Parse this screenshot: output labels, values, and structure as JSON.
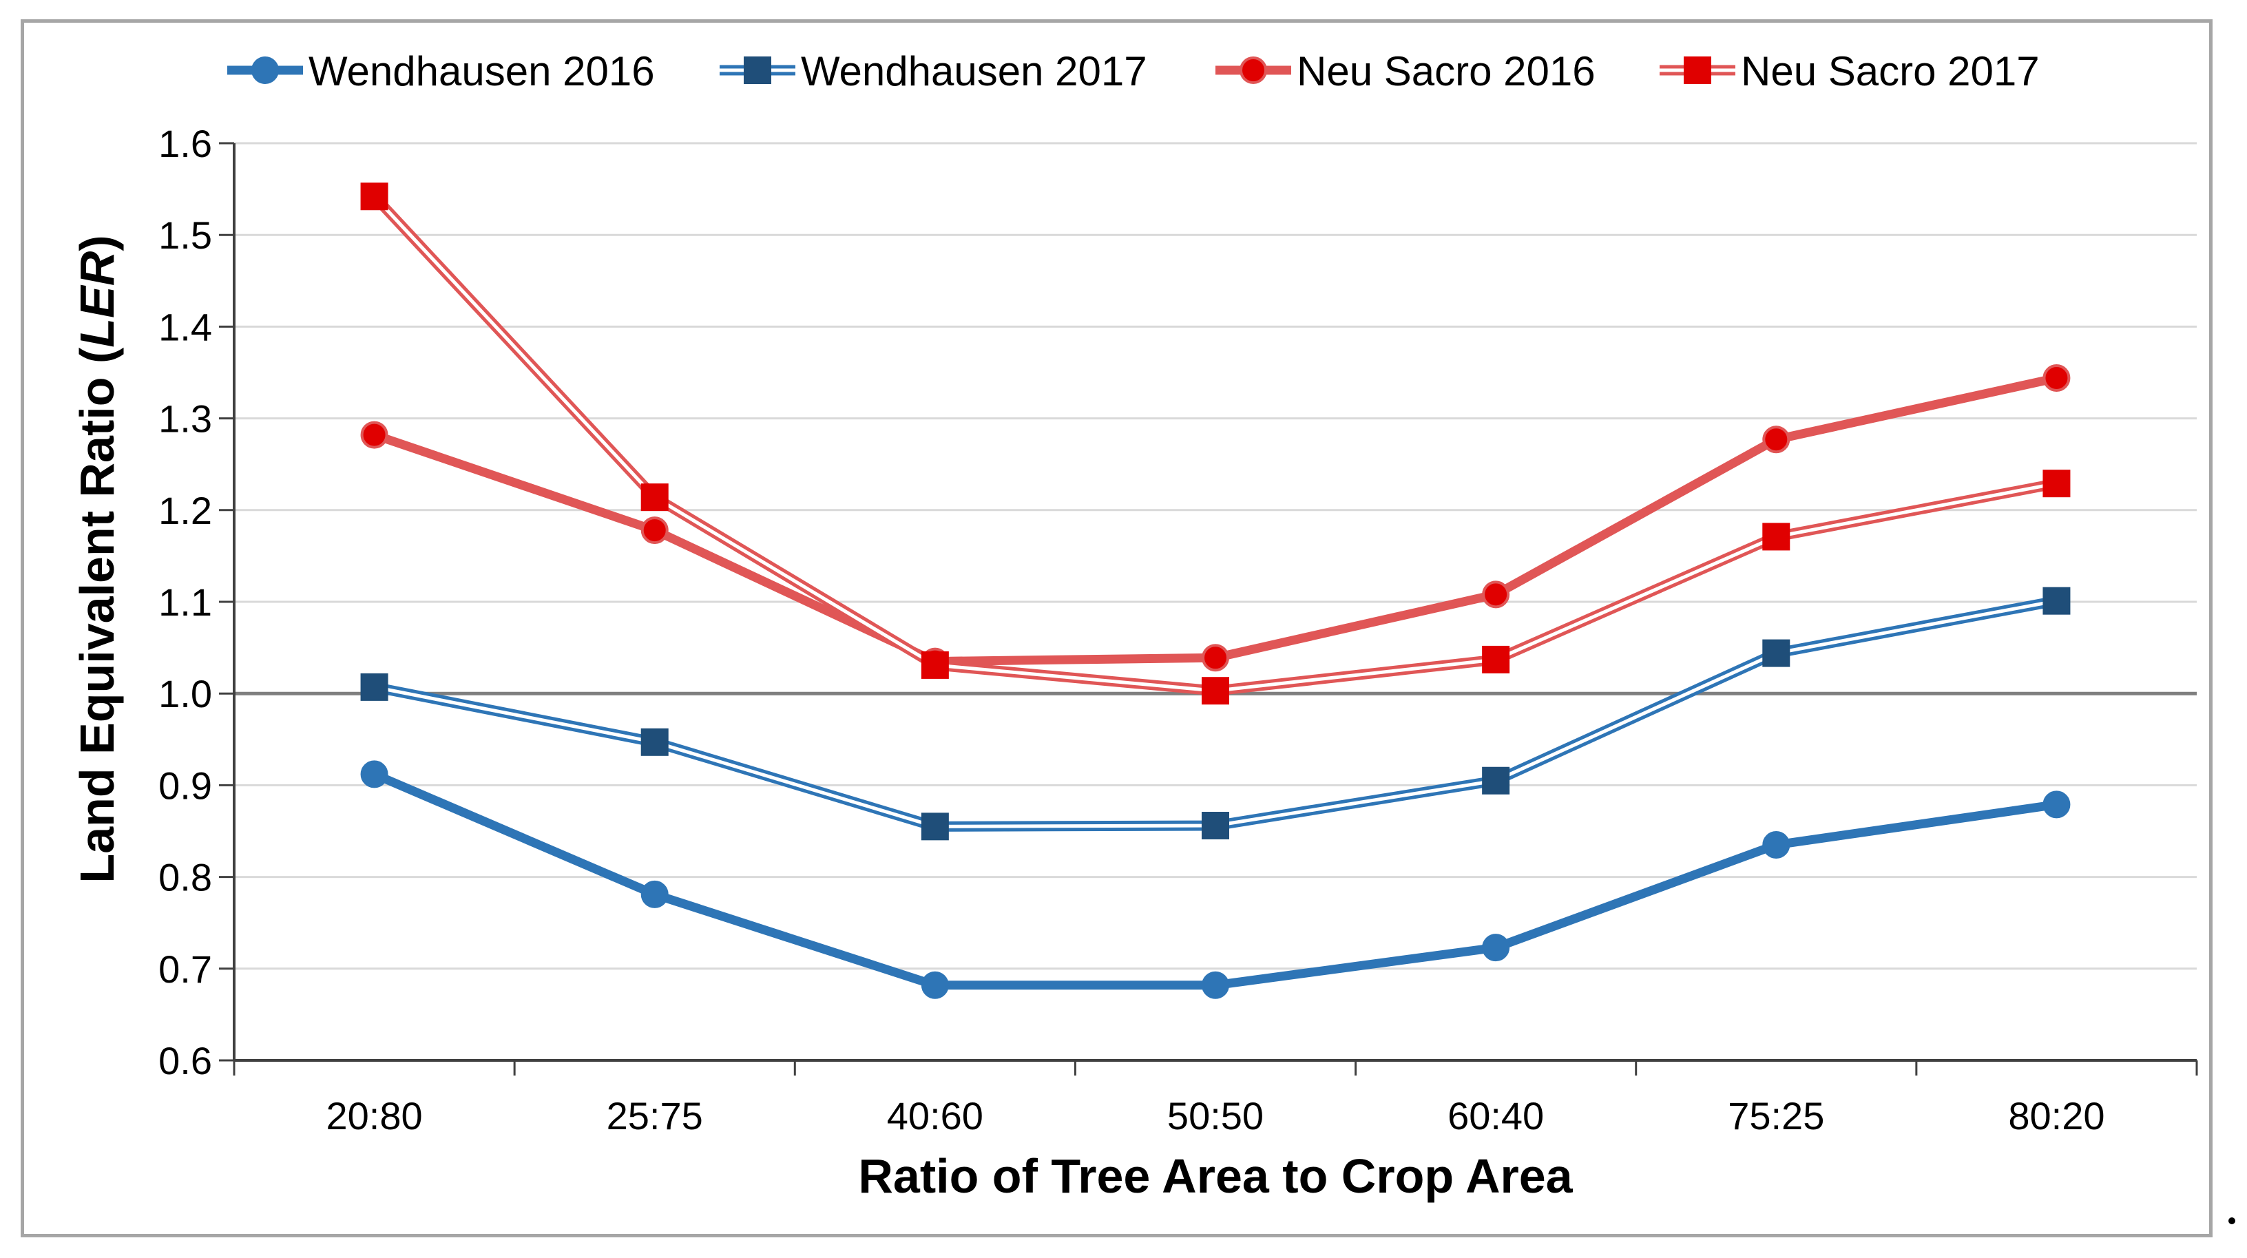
{
  "chart_data": {
    "type": "line",
    "title": "",
    "xlabel": "Ratio of Tree Area to Crop Area",
    "ylabel": "Land Equivalent Ratio (LER)",
    "ylabel_main": "Land Equivalent Ratio (",
    "ylabel_italic": "LER",
    "ylabel_close": ")",
    "categories": [
      "20:80",
      "25:75",
      "40:60",
      "50:50",
      "60:40",
      "75:25",
      "80:20"
    ],
    "ylim": [
      0.6,
      1.6
    ],
    "yticks": [
      "0.6",
      "0.7",
      "0.8",
      "0.9",
      "1.0",
      "1.1",
      "1.2",
      "1.3",
      "1.4",
      "1.5",
      "1.6"
    ],
    "reference_line": 1.0,
    "grid": true,
    "legend_position": "top",
    "series": [
      {
        "name": "Wendhausen 2016",
        "values": [
          0.912,
          0.781,
          0.682,
          0.682,
          0.723,
          0.835,
          0.879
        ],
        "color": "#2e75b6",
        "marker": "circle",
        "style": "solid"
      },
      {
        "name": "Wendhausen 2017",
        "values": [
          1.007,
          0.947,
          0.855,
          0.856,
          0.905,
          1.044,
          1.101
        ],
        "color": "#2e75b6",
        "marker_color": "#1f4e79",
        "marker": "square",
        "style": "double"
      },
      {
        "name": "Neu Sacro 2016",
        "values": [
          1.282,
          1.178,
          1.035,
          1.039,
          1.108,
          1.277,
          1.344
        ],
        "color": "#e05656",
        "marker_color": "#e00000",
        "marker": "circle",
        "style": "solid"
      },
      {
        "name": "Neu Sacro 2017",
        "values": [
          1.542,
          1.214,
          1.031,
          1.003,
          1.037,
          1.171,
          1.229
        ],
        "color": "#e05656",
        "marker_color": "#e00000",
        "marker": "square",
        "style": "double"
      }
    ]
  }
}
